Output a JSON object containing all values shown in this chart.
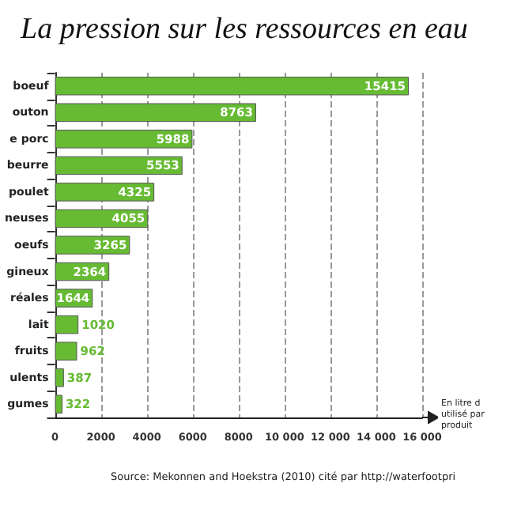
{
  "chart_data": {
    "type": "bar",
    "orientation": "horizontal",
    "title": "La pression sur les ressources en eau",
    "categories": [
      "boeuf",
      "outon",
      "e porc",
      "beurre",
      "poulet",
      "neuses",
      "oeufs",
      "gineux",
      "réales",
      "lait",
      "fruits",
      "ulents",
      "gumes"
    ],
    "values": [
      15415,
      8763,
      5988,
      5553,
      4325,
      4055,
      3265,
      2364,
      1644,
      1020,
      962,
      387,
      322
    ],
    "color": "#66bb33",
    "data_labels": true,
    "xlim": [
      0,
      16000
    ],
    "xticks": [
      0,
      2000,
      4000,
      6000,
      8000,
      {
        "value": 10000,
        "label": "10 000"
      },
      {
        "value": 12000,
        "label": "12 000"
      },
      {
        "value": 14000,
        "label": "14 000"
      },
      {
        "value": 16000,
        "label": "16 000"
      }
    ],
    "grid": "x",
    "xlabel": "En litre d utilisé par produit",
    "annotations": [
      "Source: Mekonnen and Hoekstra (2010) cité par http://waterfootpri"
    ]
  }
}
